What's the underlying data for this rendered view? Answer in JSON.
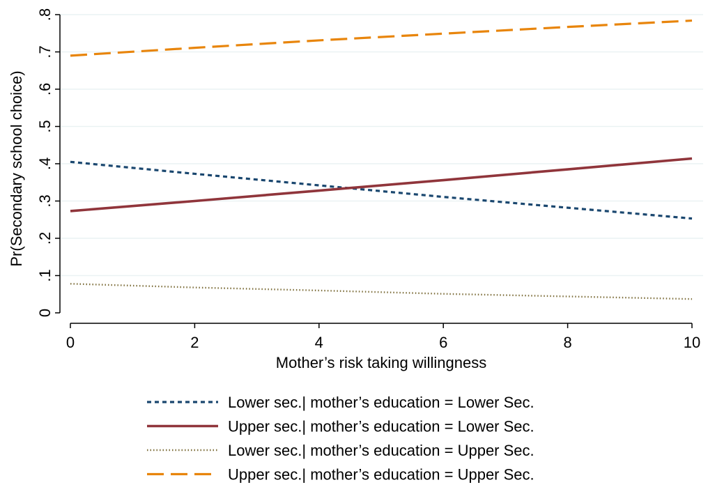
{
  "chart_data": {
    "type": "line",
    "xlabel": "Mother’s risk taking willingness",
    "ylabel": "Pr(Secondary school choice)",
    "xlim": [
      0,
      10
    ],
    "ylim": [
      0,
      0.8
    ],
    "x_ticks": [
      0,
      2,
      4,
      6,
      8,
      10
    ],
    "x_tick_labels": [
      "0",
      "2",
      "4",
      "6",
      "8",
      "10"
    ],
    "y_ticks": [
      0,
      0.1,
      0.2,
      0.3,
      0.4,
      0.5,
      0.6,
      0.7,
      0.8
    ],
    "y_tick_labels": [
      "0",
      ".1",
      ".2",
      ".3",
      ".4",
      ".5",
      ".6",
      ".7",
      ".8"
    ],
    "grid": "horizontal",
    "legend_position": "bottom",
    "series": [
      {
        "name": "Lower sec.| mother’s education = Lower Sec.",
        "color": "#1a476f",
        "style": "short-dash",
        "x": [
          0,
          2,
          4,
          6,
          8,
          10
        ],
        "values": [
          0.405,
          0.373,
          0.342,
          0.311,
          0.282,
          0.253
        ]
      },
      {
        "name": "Upper sec.| mother’s education = Lower Sec.",
        "color": "#90353b",
        "style": "solid",
        "x": [
          0,
          2,
          4,
          6,
          8,
          10
        ],
        "values": [
          0.273,
          0.3,
          0.328,
          0.356,
          0.385,
          0.414
        ]
      },
      {
        "name": "Lower sec.| mother’s education = Upper Sec.",
        "color": "#7e6f3c",
        "style": "dotted",
        "x": [
          0,
          2,
          4,
          6,
          8,
          10
        ],
        "values": [
          0.078,
          0.068,
          0.06,
          0.051,
          0.044,
          0.037
        ]
      },
      {
        "name": "Upper sec.| mother’s education = Upper Sec.",
        "color": "#e8850c",
        "style": "long-dash",
        "x": [
          0,
          2,
          4,
          6,
          8,
          10
        ],
        "values": [
          0.69,
          0.711,
          0.731,
          0.749,
          0.767,
          0.784
        ]
      }
    ]
  }
}
